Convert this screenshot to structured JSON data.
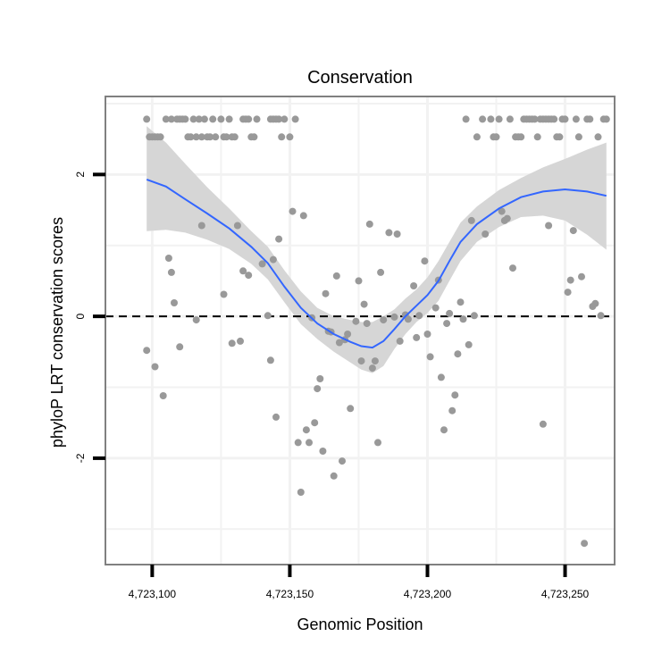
{
  "chart_data": {
    "type": "scatter",
    "title": "Conservation",
    "xlabel": "Genomic Position",
    "ylabel": "phyloP LRT conservation scores",
    "xlim": [
      4723083,
      4723268
    ],
    "ylim": [
      -3.5,
      3.1
    ],
    "x_ticks": [
      {
        "value": 4723100,
        "label": "4,723,100"
      },
      {
        "value": 4723150,
        "label": "4,723,150"
      },
      {
        "value": 4723200,
        "label": "4,723,200"
      },
      {
        "value": 4723250,
        "label": "4,723,250"
      }
    ],
    "y_ticks": [
      {
        "value": -2,
        "label": "-2"
      },
      {
        "value": 0,
        "label": "0"
      },
      {
        "value": 2,
        "label": "2"
      }
    ],
    "minor_x_gridlines": [
      4723125,
      4723175,
      4723225
    ],
    "minor_y_gridlines": [
      -3,
      -1,
      1,
      3
    ],
    "reference_line": {
      "y": 0,
      "style": "dashed"
    },
    "colors": {
      "points": "#999999",
      "smooth": "#3366FF",
      "ribbon": "#D6D6D6",
      "panel_border": "#808080",
      "grid": "#F2F2F2"
    },
    "series": [
      {
        "name": "scores",
        "points": [
          [
            4723098,
            2.78
          ],
          [
            4723099,
            2.53
          ],
          [
            4723100,
            2.53
          ],
          [
            4723101,
            2.53
          ],
          [
            4723102,
            2.53
          ],
          [
            4723103,
            2.53
          ],
          [
            4723105,
            2.78
          ],
          [
            4723107,
            2.78
          ],
          [
            4723109,
            2.78
          ],
          [
            4723110,
            2.78
          ],
          [
            4723111,
            2.78
          ],
          [
            4723112,
            2.78
          ],
          [
            4723113,
            2.53
          ],
          [
            4723114,
            2.53
          ],
          [
            4723115,
            2.78
          ],
          [
            4723116,
            2.53
          ],
          [
            4723117,
            2.78
          ],
          [
            4723118,
            2.53
          ],
          [
            4723119,
            2.78
          ],
          [
            4723120,
            2.53
          ],
          [
            4723121,
            2.53
          ],
          [
            4723122,
            2.78
          ],
          [
            4723123,
            2.53
          ],
          [
            4723125,
            2.78
          ],
          [
            4723126,
            2.53
          ],
          [
            4723127,
            2.53
          ],
          [
            4723128,
            2.78
          ],
          [
            4723129,
            2.53
          ],
          [
            4723130,
            2.53
          ],
          [
            4723133,
            2.78
          ],
          [
            4723134,
            2.78
          ],
          [
            4723135,
            2.78
          ],
          [
            4723136,
            2.53
          ],
          [
            4723137,
            2.53
          ],
          [
            4723138,
            2.78
          ],
          [
            4723143,
            2.78
          ],
          [
            4723144,
            2.78
          ],
          [
            4723145,
            2.78
          ],
          [
            4723146,
            2.78
          ],
          [
            4723147,
            2.53
          ],
          [
            4723148,
            2.78
          ],
          [
            4723150,
            2.53
          ],
          [
            4723152,
            2.78
          ],
          [
            4723098,
            -0.48
          ],
          [
            4723101,
            -0.71
          ],
          [
            4723104,
            -1.12
          ],
          [
            4723106,
            0.82
          ],
          [
            4723107,
            0.62
          ],
          [
            4723108,
            0.19
          ],
          [
            4723110,
            -0.43
          ],
          [
            4723116,
            -0.05
          ],
          [
            4723118,
            1.28
          ],
          [
            4723126,
            0.31
          ],
          [
            4723129,
            -0.38
          ],
          [
            4723131,
            1.28
          ],
          [
            4723132,
            -0.35
          ],
          [
            4723133,
            0.64
          ],
          [
            4723135,
            0.58
          ],
          [
            4723140,
            0.74
          ],
          [
            4723142,
            0.01
          ],
          [
            4723143,
            -0.62
          ],
          [
            4723144,
            0.8
          ],
          [
            4723145,
            -1.42
          ],
          [
            4723146,
            1.09
          ],
          [
            4723151,
            1.48
          ],
          [
            4723153,
            -1.78
          ],
          [
            4723154,
            -2.48
          ],
          [
            4723155,
            1.42
          ],
          [
            4723156,
            -1.6
          ],
          [
            4723157,
            -1.78
          ],
          [
            4723158,
            -0.02
          ],
          [
            4723159,
            -1.5
          ],
          [
            4723160,
            -1.02
          ],
          [
            4723161,
            -0.88
          ],
          [
            4723162,
            -1.9
          ],
          [
            4723163,
            0.32
          ],
          [
            4723164,
            -0.21
          ],
          [
            4723165,
            -0.22
          ],
          [
            4723166,
            -2.25
          ],
          [
            4723167,
            0.57
          ],
          [
            4723168,
            -0.37
          ],
          [
            4723169,
            -2.04
          ],
          [
            4723170,
            -0.33
          ],
          [
            4723171,
            -0.25
          ],
          [
            4723172,
            -1.3
          ],
          [
            4723174,
            -0.07
          ],
          [
            4723175,
            0.5
          ],
          [
            4723176,
            -0.63
          ],
          [
            4723177,
            0.17
          ],
          [
            4723178,
            -0.1
          ],
          [
            4723179,
            1.3
          ],
          [
            4723180,
            -0.73
          ],
          [
            4723181,
            -0.63
          ],
          [
            4723182,
            -1.78
          ],
          [
            4723183,
            0.62
          ],
          [
            4723184,
            -0.05
          ],
          [
            4723186,
            1.18
          ],
          [
            4723188,
            -0.01
          ],
          [
            4723189,
            1.16
          ],
          [
            4723190,
            -0.35
          ],
          [
            4723192,
            0.02
          ],
          [
            4723193,
            -0.04
          ],
          [
            4723195,
            0.43
          ],
          [
            4723196,
            -0.3
          ],
          [
            4723197,
            0.01
          ],
          [
            4723199,
            0.78
          ],
          [
            4723200,
            -0.25
          ],
          [
            4723201,
            -0.57
          ],
          [
            4723203,
            0.12
          ],
          [
            4723204,
            0.51
          ],
          [
            4723205,
            -0.86
          ],
          [
            4723206,
            -1.6
          ],
          [
            4723207,
            -0.1
          ],
          [
            4723208,
            0.04
          ],
          [
            4723209,
            -1.33
          ],
          [
            4723210,
            -1.11
          ],
          [
            4723211,
            -0.53
          ],
          [
            4723212,
            0.2
          ],
          [
            4723213,
            -0.04
          ],
          [
            4723215,
            -0.4
          ],
          [
            4723216,
            1.35
          ],
          [
            4723217,
            0.01
          ],
          [
            4723218,
            2.53
          ],
          [
            4723214,
            2.78
          ],
          [
            4723220,
            2.78
          ],
          [
            4723221,
            1.16
          ],
          [
            4723223,
            2.78
          ],
          [
            4723224,
            2.53
          ],
          [
            4723225,
            2.53
          ],
          [
            4723226,
            2.78
          ],
          [
            4723227,
            1.48
          ],
          [
            4723228,
            1.35
          ],
          [
            4723229,
            1.38
          ],
          [
            4723230,
            2.78
          ],
          [
            4723231,
            0.68
          ],
          [
            4723232,
            2.53
          ],
          [
            4723233,
            2.53
          ],
          [
            4723234,
            2.53
          ],
          [
            4723235,
            2.78
          ],
          [
            4723236,
            2.78
          ],
          [
            4723237,
            2.78
          ],
          [
            4723238,
            2.78
          ],
          [
            4723239,
            2.78
          ],
          [
            4723240,
            2.53
          ],
          [
            4723241,
            2.78
          ],
          [
            4723242,
            2.78
          ],
          [
            4723243,
            2.78
          ],
          [
            4723244,
            2.78
          ],
          [
            4723245,
            2.78
          ],
          [
            4723246,
            2.78
          ],
          [
            4723247,
            2.53
          ],
          [
            4723248,
            2.53
          ],
          [
            4723249,
            2.78
          ],
          [
            4723250,
            2.78
          ],
          [
            4723251,
            0.34
          ],
          [
            4723252,
            0.51
          ],
          [
            4723253,
            1.21
          ],
          [
            4723254,
            2.78
          ],
          [
            4723255,
            2.53
          ],
          [
            4723256,
            0.56
          ],
          [
            4723257,
            -3.2
          ],
          [
            4723258,
            2.78
          ],
          [
            4723259,
            2.78
          ],
          [
            4723260,
            0.14
          ],
          [
            4723261,
            0.18
          ],
          [
            4723262,
            2.53
          ],
          [
            4723263,
            0.01
          ],
          [
            4723264,
            2.78
          ],
          [
            4723265,
            2.78
          ],
          [
            4723242,
            -1.52
          ],
          [
            4723244,
            1.28
          ]
        ]
      },
      {
        "name": "loess fit",
        "curve": [
          [
            4723098,
            1.93
          ],
          [
            4723105,
            1.83
          ],
          [
            4723112,
            1.65
          ],
          [
            4723120,
            1.45
          ],
          [
            4723128,
            1.24
          ],
          [
            4723136,
            0.98
          ],
          [
            4723142,
            0.75
          ],
          [
            4723148,
            0.42
          ],
          [
            4723154,
            0.12
          ],
          [
            4723160,
            -0.1
          ],
          [
            4723166,
            -0.25
          ],
          [
            4723172,
            -0.36
          ],
          [
            4723176,
            -0.42
          ],
          [
            4723180,
            -0.44
          ],
          [
            4723184,
            -0.35
          ],
          [
            4723188,
            -0.18
          ],
          [
            4723192,
            0.0
          ],
          [
            4723196,
            0.15
          ],
          [
            4723200,
            0.3
          ],
          [
            4723204,
            0.5
          ],
          [
            4723208,
            0.78
          ],
          [
            4723212,
            1.05
          ],
          [
            4723218,
            1.3
          ],
          [
            4723226,
            1.52
          ],
          [
            4723234,
            1.68
          ],
          [
            4723242,
            1.76
          ],
          [
            4723250,
            1.79
          ],
          [
            4723258,
            1.76
          ],
          [
            4723265,
            1.7
          ]
        ],
        "ribbon_upper": [
          [
            4723098,
            2.68
          ],
          [
            4723105,
            2.45
          ],
          [
            4723112,
            2.15
          ],
          [
            4723120,
            1.82
          ],
          [
            4723128,
            1.52
          ],
          [
            4723136,
            1.2
          ],
          [
            4723142,
            0.98
          ],
          [
            4723148,
            0.65
          ],
          [
            4723154,
            0.35
          ],
          [
            4723160,
            0.12
          ],
          [
            4723166,
            0.0
          ],
          [
            4723172,
            -0.05
          ],
          [
            4723176,
            -0.08
          ],
          [
            4723180,
            -0.08
          ],
          [
            4723184,
            0.0
          ],
          [
            4723188,
            0.1
          ],
          [
            4723192,
            0.25
          ],
          [
            4723196,
            0.38
          ],
          [
            4723200,
            0.55
          ],
          [
            4723204,
            0.78
          ],
          [
            4723208,
            1.05
          ],
          [
            4723212,
            1.32
          ],
          [
            4723218,
            1.55
          ],
          [
            4723226,
            1.78
          ],
          [
            4723234,
            1.95
          ],
          [
            4723242,
            2.1
          ],
          [
            4723250,
            2.22
          ],
          [
            4723258,
            2.35
          ],
          [
            4723265,
            2.45
          ]
        ],
        "ribbon_lower": [
          [
            4723098,
            1.2
          ],
          [
            4723105,
            1.22
          ],
          [
            4723112,
            1.18
          ],
          [
            4723120,
            1.08
          ],
          [
            4723128,
            0.95
          ],
          [
            4723136,
            0.74
          ],
          [
            4723142,
            0.52
          ],
          [
            4723148,
            0.2
          ],
          [
            4723154,
            -0.11
          ],
          [
            4723160,
            -0.32
          ],
          [
            4723166,
            -0.5
          ],
          [
            4723172,
            -0.65
          ],
          [
            4723176,
            -0.75
          ],
          [
            4723180,
            -0.8
          ],
          [
            4723184,
            -0.7
          ],
          [
            4723188,
            -0.46
          ],
          [
            4723192,
            -0.25
          ],
          [
            4723196,
            -0.08
          ],
          [
            4723200,
            0.05
          ],
          [
            4723204,
            0.22
          ],
          [
            4723208,
            0.5
          ],
          [
            4723212,
            0.78
          ],
          [
            4723218,
            1.05
          ],
          [
            4723226,
            1.26
          ],
          [
            4723234,
            1.4
          ],
          [
            4723242,
            1.42
          ],
          [
            4723250,
            1.35
          ],
          [
            4723258,
            1.15
          ],
          [
            4723265,
            0.94
          ]
        ]
      }
    ]
  }
}
